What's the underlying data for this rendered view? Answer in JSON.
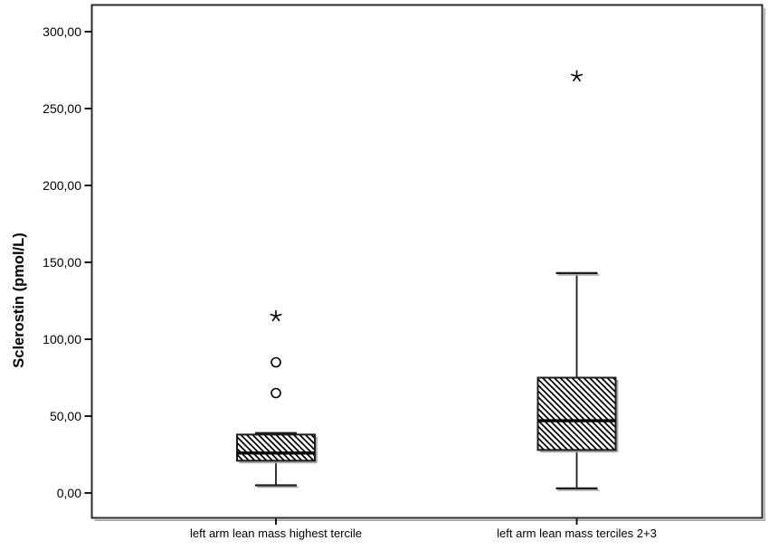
{
  "figure": {
    "background": "#ffffff"
  },
  "chart_data": {
    "type": "boxplot",
    "title": "",
    "xlabel": "",
    "ylabel": "Sclerostin (pmol/L)",
    "ylim": [
      -16,
      318
    ],
    "grid": "off",
    "legend": "none",
    "y_ticks": [
      {
        "value": 0,
        "label": "0,00"
      },
      {
        "value": 50,
        "label": "50,00"
      },
      {
        "value": 100,
        "label": "100,00"
      },
      {
        "value": 150,
        "label": "150,00"
      },
      {
        "value": 200,
        "label": "200,00"
      },
      {
        "value": 250,
        "label": "250,00"
      },
      {
        "value": 300,
        "label": "300,00"
      }
    ],
    "groups": [
      {
        "label": "left arm lean mass highest tercile",
        "median": 26,
        "q1": 21,
        "q3": 38,
        "whisker_low": 5,
        "whisker_high": 39,
        "outliers": [
          65,
          85
        ],
        "extremes": [
          115
        ]
      },
      {
        "label": "left arm lean mass terciles 2+3",
        "median": 47,
        "q1": 28,
        "q3": 75,
        "whisker_low": 3,
        "whisker_high": 143,
        "outliers": [],
        "extremes": [
          271
        ]
      }
    ],
    "style": {
      "box_fill": "diagonal-hatch",
      "stroke_color": "#1c1c1c",
      "median_color": "#000000",
      "shadow_color": "#a8a8a8",
      "background": "#ffffff"
    }
  }
}
